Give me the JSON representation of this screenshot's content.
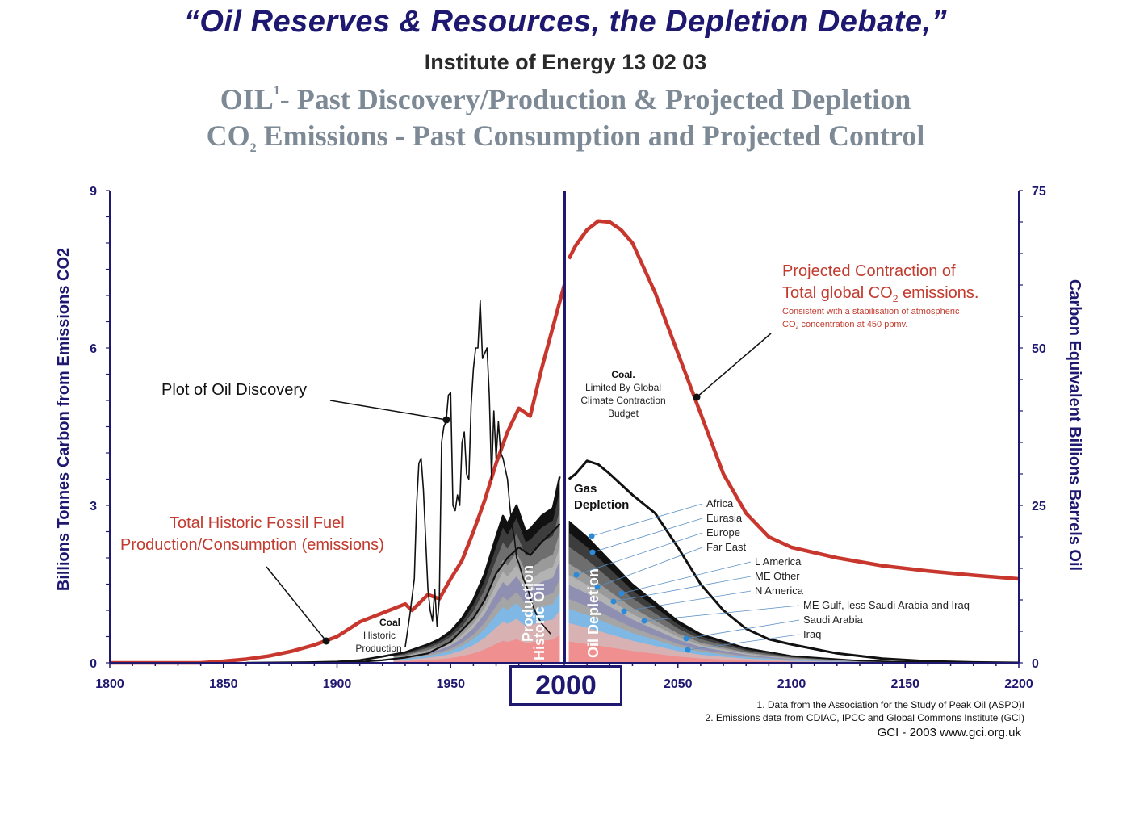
{
  "title": {
    "main": "“Oil Reserves & Resources, the Depletion Debate,”",
    "sub": "Institute of Energy 13 02 03",
    "line3_pre": "OIL",
    "line3_sup": "1",
    "line3_post": "- Past Discovery/Production & Projected Depletion",
    "line4_pre": "CO",
    "line4_sub": "2",
    "line4_post": " Emissions - Past Consumption and Projected Control"
  },
  "chart_data": {
    "type": "area",
    "xlabel": "",
    "y_left_label": "Billions Tonnes Carbon from Emissions CO2",
    "y_right_label": "Carbon Equivalent Billions Barrels Oil",
    "xlim": [
      1800,
      2200
    ],
    "ylim_left": [
      0,
      9
    ],
    "ylim_right": [
      0,
      75
    ],
    "x_ticks": [
      "1800",
      "1850",
      "1900",
      "1950",
      "2050",
      "2100",
      "2150",
      "2200"
    ],
    "x_tick_values": [
      1800,
      1850,
      1900,
      1950,
      2050,
      2100,
      2150,
      2200
    ],
    "y_left_ticks": [
      "0",
      "3",
      "6",
      "9"
    ],
    "y_left_tick_values": [
      0,
      3,
      6,
      9
    ],
    "y_right_ticks": [
      "0",
      "25",
      "50",
      "75"
    ],
    "y_right_tick_values": [
      0,
      25,
      50,
      75
    ],
    "highlight_year": "2000",
    "series": [
      {
        "name": "Total Historic Fossil Fuel Production/Consumption (emissions)",
        "color": "#c8372d",
        "x": [
          1800,
          1840,
          1850,
          1860,
          1870,
          1880,
          1890,
          1900,
          1910,
          1920,
          1930,
          1933,
          1940,
          1945,
          1950,
          1955,
          1960,
          1965,
          1970,
          1975,
          1980,
          1985,
          1990,
          1995,
          2000
        ],
        "y": [
          0,
          0,
          0.03,
          0.07,
          0.13,
          0.22,
          0.34,
          0.5,
          0.78,
          0.95,
          1.12,
          1.0,
          1.3,
          1.22,
          1.6,
          1.95,
          2.5,
          3.1,
          3.8,
          4.4,
          4.85,
          4.7,
          5.6,
          6.4,
          7.2
        ]
      },
      {
        "name": "Projected Contraction of Total global CO2 emissions.",
        "color": "#c8372d",
        "x": [
          2002,
          2005,
          2010,
          2015,
          2020,
          2025,
          2030,
          2040,
          2050,
          2060,
          2070,
          2080,
          2090,
          2100,
          2120,
          2140,
          2160,
          2180,
          2200
        ],
        "y": [
          7.7,
          7.95,
          8.25,
          8.42,
          8.4,
          8.25,
          8.0,
          7.05,
          5.9,
          4.75,
          3.6,
          2.85,
          2.4,
          2.2,
          2.0,
          1.85,
          1.75,
          1.67,
          1.6
        ]
      },
      {
        "name": "Plot of Oil Discovery",
        "color": "#111111",
        "x": [
          1930,
          1932,
          1934,
          1935,
          1936,
          1937,
          1938,
          1940,
          1941,
          1942,
          1943,
          1944,
          1945,
          1946,
          1947,
          1948,
          1949,
          1950,
          1951,
          1952,
          1953,
          1954,
          1955,
          1956,
          1957,
          1958,
          1959,
          1960,
          1961,
          1962,
          1963,
          1964,
          1965,
          1966,
          1967,
          1968,
          1969,
          1970,
          1971,
          1972,
          1973,
          1974,
          1975,
          1976,
          1977,
          1978,
          1979,
          1980,
          1982,
          1984,
          1986,
          1988,
          1990,
          1992,
          1994
        ],
        "y": [
          0.3,
          0.9,
          1.6,
          3.0,
          3.8,
          3.9,
          3.3,
          1.4,
          1.0,
          0.8,
          1.4,
          0.7,
          1.2,
          4.2,
          4.5,
          4.6,
          5.1,
          5.15,
          3.0,
          2.9,
          3.2,
          3.0,
          4.2,
          4.4,
          3.6,
          3.5,
          4.9,
          5.6,
          6.0,
          6.0,
          6.9,
          5.8,
          5.9,
          6.0,
          5.1,
          3.5,
          4.8,
          3.9,
          4.6,
          4.0,
          3.9,
          3.7,
          3.5,
          3.0,
          2.6,
          2.4,
          2.0,
          1.9,
          1.6,
          1.4,
          1.1,
          0.9,
          0.75,
          0.65,
          0.55
        ]
      },
      {
        "name": "Historic Oil Production",
        "color": "#111111",
        "x": [
          1860,
          1890,
          1900,
          1910,
          1920,
          1930,
          1940,
          1945,
          1950,
          1955,
          1960,
          1965,
          1970,
          1973,
          1975,
          1979,
          1983,
          1985,
          1990,
          1995,
          1998
        ],
        "y": [
          0,
          0.01,
          0.02,
          0.05,
          0.12,
          0.2,
          0.35,
          0.45,
          0.6,
          0.85,
          1.2,
          1.7,
          2.4,
          2.8,
          2.65,
          3.0,
          2.5,
          2.55,
          2.8,
          2.95,
          3.55
        ]
      },
      {
        "name": "Gas Depletion",
        "color": "#111111",
        "x": [
          2002,
          2005,
          2010,
          2015,
          2020,
          2030,
          2040,
          2050,
          2060,
          2070,
          2080,
          2090,
          2100,
          2120,
          2140,
          2160,
          2180,
          2200
        ],
        "y": [
          3.5,
          3.6,
          3.85,
          3.78,
          3.6,
          3.2,
          2.85,
          2.2,
          1.5,
          1.0,
          0.65,
          0.45,
          0.35,
          0.18,
          0.08,
          0.03,
          0.01,
          0
        ]
      },
      {
        "name": "Coal Historic Production",
        "color": "#111111",
        "x": [
          1880,
          1900,
          1910,
          1920,
          1930,
          1940,
          1950,
          1960,
          1965,
          1970,
          1975,
          1980,
          1985,
          1990,
          1995,
          1998
        ],
        "y": [
          0,
          0.01,
          0.02,
          0.05,
          0.1,
          0.18,
          0.4,
          0.85,
          1.2,
          1.7,
          2.0,
          2.2,
          2.05,
          2.3,
          2.5,
          2.65
        ]
      },
      {
        "name": "Oil Depletion",
        "color": "#111111",
        "x": [
          2002,
          2010,
          2020,
          2030,
          2040,
          2050,
          2060,
          2080,
          2100,
          2130,
          2160,
          2180
        ],
        "y": [
          2.7,
          2.4,
          1.95,
          1.5,
          1.15,
          0.8,
          0.55,
          0.28,
          0.13,
          0.04,
          0.01,
          0
        ]
      }
    ],
    "regions_legend": [
      "Africa",
      "Eurasia",
      "Europe",
      "Far East",
      "L America",
      "ME Other",
      "N America",
      "ME Gulf, less Saudi Arabia and Iraq",
      "Saudi Arabia",
      "Iraq"
    ],
    "region_colors": [
      "#111111",
      "#3d3d3d",
      "#6e6e6e",
      "#9a9a9a",
      "#b3b3b3",
      "#8f8fb2",
      "#a5a5a5",
      "#7fb8e4",
      "#d8b2b2",
      "#ef8f8f"
    ]
  },
  "annotations": {
    "plot_of_oil_discovery": "Plot of Oil Discovery",
    "historic_line1": "Total Historic Fossil Fuel",
    "historic_line2": "Production/Consumption (emissions)",
    "proj_line1": "Projected Contraction of",
    "proj_line2a": "Total global CO",
    "proj_line2_sub": "2",
    "proj_line2b": " emissions.",
    "proj_note1": "Consistent with a stabilisation of atmospheric",
    "proj_note2a": "CO",
    "proj_note2_sub": "2",
    "proj_note2b": " concentration at 450 ppmv.",
    "coal_future_title": "Coal.",
    "coal_future_1": "Limited By Global",
    "coal_future_2": "Climate Contraction",
    "coal_future_3": "Budget",
    "gas_1": "Gas",
    "gas_2": "Depletion",
    "coal_hist_title": "Coal",
    "coal_hist_1": "Historic",
    "coal_hist_2": "Production",
    "historic_oil_1": "Historic Oil",
    "historic_oil_2": "Production",
    "oil_depletion": "Oil Depletion"
  },
  "footnotes": {
    "f1": "1. Data from the  Association for the Study of Peak Oil (ASPO)I",
    "f2": "2. Emissions data from CDIAC,  IPCC and Global Commons Institute (GCI)",
    "gci": "GCI - 2003   www.gci.org.uk"
  }
}
